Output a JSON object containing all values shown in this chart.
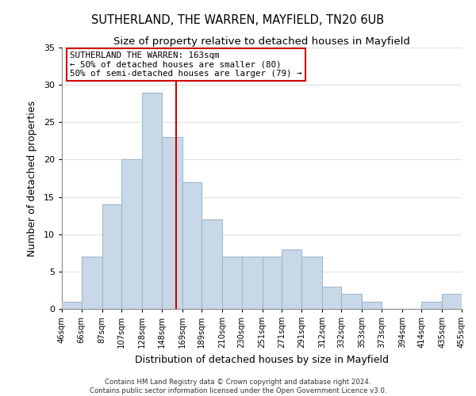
{
  "title": "SUTHERLAND, THE WARREN, MAYFIELD, TN20 6UB",
  "subtitle": "Size of property relative to detached houses in Mayfield",
  "xlabel": "Distribution of detached houses by size in Mayfield",
  "ylabel": "Number of detached properties",
  "bar_color": "#c8d8e8",
  "bar_edgecolor": "#a0b8cc",
  "bins": [
    46,
    66,
    87,
    107,
    128,
    148,
    169,
    189,
    210,
    230,
    251,
    271,
    291,
    312,
    332,
    353,
    373,
    394,
    414,
    435,
    455
  ],
  "counts": [
    1,
    7,
    14,
    20,
    29,
    23,
    17,
    12,
    7,
    7,
    7,
    8,
    7,
    3,
    2,
    1,
    0,
    0,
    1,
    2
  ],
  "tick_labels": [
    "46sqm",
    "66sqm",
    "87sqm",
    "107sqm",
    "128sqm",
    "148sqm",
    "169sqm",
    "189sqm",
    "210sqm",
    "230sqm",
    "251sqm",
    "271sqm",
    "291sqm",
    "312sqm",
    "332sqm",
    "353sqm",
    "373sqm",
    "394sqm",
    "414sqm",
    "435sqm",
    "455sqm"
  ],
  "ylim": [
    0,
    35
  ],
  "yticks": [
    0,
    5,
    10,
    15,
    20,
    25,
    30,
    35
  ],
  "property_value": 163,
  "vline_color": "#cc0000",
  "annotation_title": "SUTHERLAND THE WARREN: 163sqm",
  "annotation_line1": "← 50% of detached houses are smaller (80)",
  "annotation_line2": "50% of semi-detached houses are larger (79) →",
  "annotation_box_edgecolor": "#cc0000",
  "footer_line1": "Contains HM Land Registry data © Crown copyright and database right 2024.",
  "footer_line2": "Contains public sector information licensed under the Open Government Licence v3.0.",
  "background_color": "#ffffff",
  "grid_color": "#e0e0e0"
}
